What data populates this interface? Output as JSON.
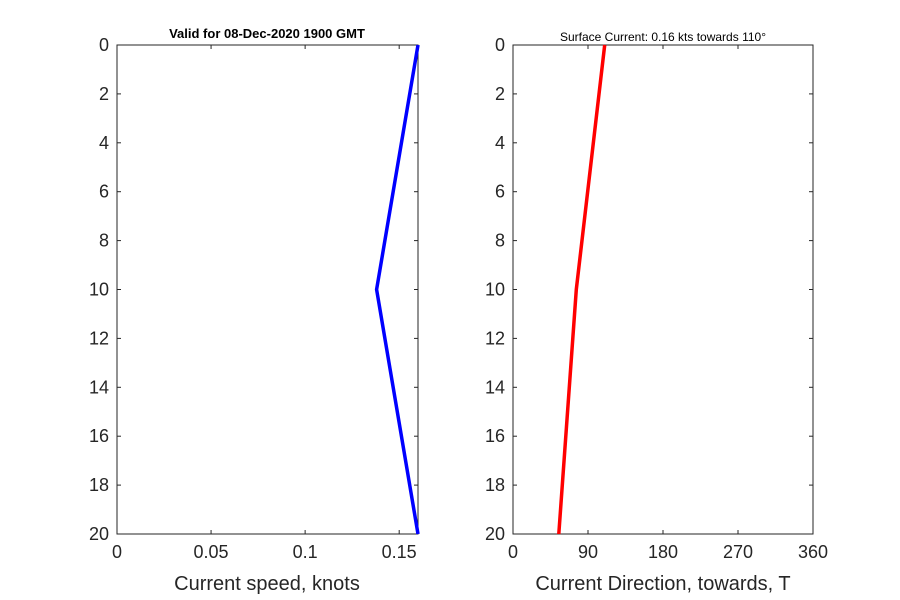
{
  "chart_data": [
    {
      "type": "line",
      "title": "Valid for 08-Dec-2020 1900 GMT",
      "xlabel": "Current speed, knots",
      "ylabel": "",
      "xlim": [
        0,
        0.16
      ],
      "ylim": [
        0,
        20
      ],
      "y_reversed": true,
      "xticks": [
        "0",
        "0.05",
        "0.1",
        "0.15"
      ],
      "xtick_values": [
        0,
        0.05,
        0.1,
        0.15
      ],
      "yticks": [
        "0",
        "2",
        "4",
        "6",
        "8",
        "10",
        "12",
        "14",
        "16",
        "18",
        "20"
      ],
      "ytick_values": [
        0,
        2,
        4,
        6,
        8,
        10,
        12,
        14,
        16,
        18,
        20
      ],
      "grid": false,
      "series": [
        {
          "color": "#0000ff",
          "x": [
            0.16,
            0.138,
            0.16
          ],
          "y": [
            0,
            10,
            20
          ]
        }
      ]
    },
    {
      "type": "line",
      "title": "Surface Current: 0.16 kts towards 110°",
      "xlabel": "Current Direction, towards, T",
      "ylabel": "",
      "xlim": [
        0,
        360
      ],
      "ylim": [
        0,
        20
      ],
      "y_reversed": true,
      "xticks": [
        "0",
        "90",
        "180",
        "270",
        "360"
      ],
      "xtick_values": [
        0,
        90,
        180,
        270,
        360
      ],
      "yticks": [
        "0",
        "2",
        "4",
        "6",
        "8",
        "10",
        "12",
        "14",
        "16",
        "18",
        "20"
      ],
      "ytick_values": [
        0,
        2,
        4,
        6,
        8,
        10,
        12,
        14,
        16,
        18,
        20
      ],
      "grid": false,
      "series": [
        {
          "color": "#ff0000",
          "x": [
            110,
            76,
            55
          ],
          "y": [
            0,
            10,
            20
          ]
        }
      ]
    }
  ]
}
